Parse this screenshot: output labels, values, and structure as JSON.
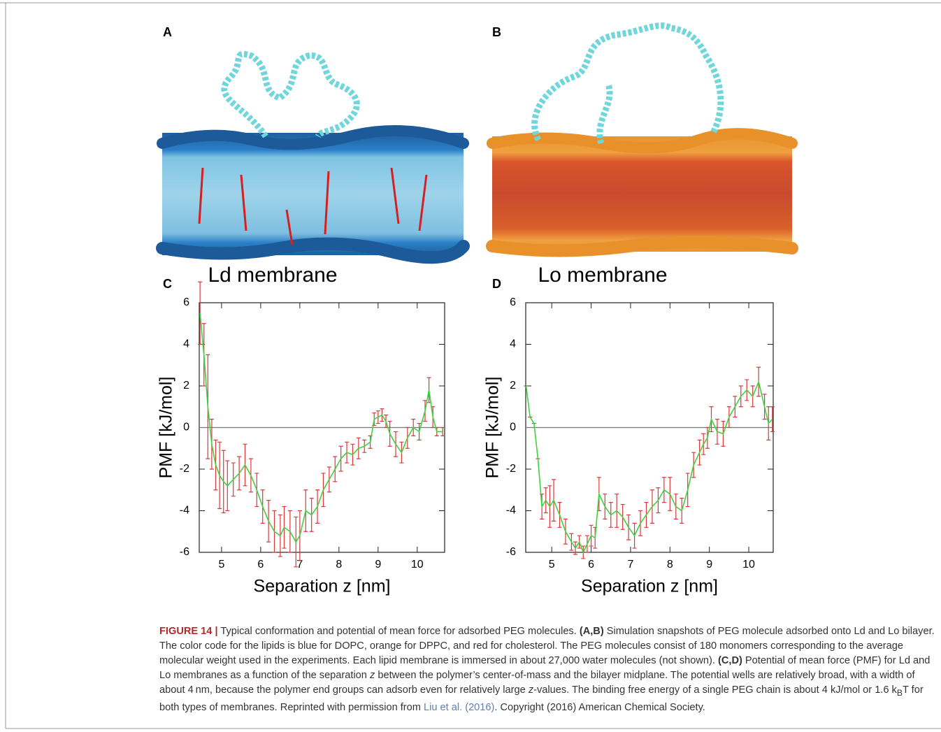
{
  "panel_labels": [
    "A",
    "B",
    "C",
    "D"
  ],
  "images": [
    {
      "caption": "Ld membrane"
    },
    {
      "caption": "Lo membrane"
    }
  ],
  "chart_data": [
    {
      "type": "line",
      "xlabel": "Separation z [nm]",
      "ylabel": "PMF [kJ/mol]",
      "xlim": [
        4.43,
        10.7
      ],
      "ylim": [
        -6,
        6
      ],
      "xticks": [
        5,
        6,
        7,
        8,
        9,
        10
      ],
      "yticks": [
        -6,
        -4,
        -2,
        0,
        2,
        4,
        6
      ],
      "hline": 0,
      "line_color": "#3fd13f",
      "error_color": "#d83a3a",
      "x": [
        4.45,
        4.55,
        4.65,
        4.75,
        4.85,
        4.95,
        5.05,
        5.15,
        5.3,
        5.45,
        5.6,
        5.75,
        5.9,
        6.05,
        6.2,
        6.35,
        6.5,
        6.6,
        6.75,
        6.9,
        7.0,
        7.15,
        7.3,
        7.45,
        7.6,
        7.75,
        7.9,
        8.05,
        8.2,
        8.35,
        8.5,
        8.65,
        8.8,
        8.9,
        9.0,
        9.1,
        9.2,
        9.3,
        9.45,
        9.6,
        9.75,
        9.9,
        10.05,
        10.2,
        10.3,
        10.4,
        10.5,
        10.65
      ],
      "values": [
        5.5,
        3.5,
        1.0,
        -0.8,
        -1.8,
        -2.3,
        -2.6,
        -2.8,
        -2.5,
        -2.2,
        -1.8,
        -2.3,
        -3.0,
        -3.8,
        -4.5,
        -5.0,
        -5.2,
        -4.8,
        -5.0,
        -5.5,
        -5.2,
        -4.0,
        -4.2,
        -3.8,
        -3.0,
        -2.5,
        -2.0,
        -1.5,
        -1.2,
        -1.3,
        -1.0,
        -0.9,
        -0.7,
        0.4,
        0.5,
        0.6,
        0.3,
        -0.3,
        -0.8,
        -1.2,
        -0.5,
        0.0,
        -0.2,
        0.8,
        1.8,
        0.5,
        -0.2,
        -0.2
      ],
      "errors": [
        1.5,
        1.5,
        2.5,
        1.2,
        1.2,
        1.6,
        1.5,
        1.2,
        0.8,
        0.8,
        1.0,
        0.8,
        0.8,
        0.8,
        1.0,
        1.0,
        1.0,
        1.0,
        1.0,
        1.2,
        1.2,
        1.0,
        0.8,
        0.8,
        0.8,
        0.6,
        0.6,
        0.6,
        0.5,
        0.5,
        0.5,
        0.3,
        0.3,
        0.3,
        0.3,
        0.3,
        0.3,
        0.6,
        0.6,
        0.5,
        0.5,
        0.4,
        0.4,
        0.5,
        0.6,
        0.5,
        0.2,
        0.2
      ]
    },
    {
      "type": "line",
      "xlabel": "Separation z [nm]",
      "ylabel": "PMF [kJ/mol]",
      "xlim": [
        4.34,
        10.62
      ],
      "ylim": [
        -6,
        6
      ],
      "xticks": [
        5,
        6,
        7,
        8,
        9,
        10
      ],
      "yticks": [
        -6,
        -4,
        -2,
        0,
        2,
        4,
        6
      ],
      "hline": 0,
      "line_color": "#3fd13f",
      "error_color": "#d83a3a",
      "x": [
        4.35,
        4.45,
        4.55,
        4.65,
        4.75,
        4.85,
        4.95,
        5.05,
        5.2,
        5.35,
        5.5,
        5.6,
        5.7,
        5.8,
        5.9,
        6.0,
        6.1,
        6.2,
        6.35,
        6.5,
        6.65,
        6.8,
        6.95,
        7.1,
        7.25,
        7.4,
        7.55,
        7.7,
        7.85,
        8.0,
        8.15,
        8.3,
        8.45,
        8.6,
        8.75,
        8.85,
        8.95,
        9.05,
        9.2,
        9.35,
        9.5,
        9.65,
        9.8,
        9.95,
        10.1,
        10.25,
        10.4,
        10.5,
        10.6
      ],
      "values": [
        2.0,
        0.5,
        0.2,
        -1.5,
        -3.8,
        -3.5,
        -3.8,
        -3.5,
        -4.2,
        -5.0,
        -5.5,
        -5.8,
        -5.5,
        -6.0,
        -5.6,
        -5.2,
        -5.3,
        -3.2,
        -3.8,
        -4.2,
        -4.0,
        -4.3,
        -4.8,
        -5.2,
        -4.6,
        -4.2,
        -3.8,
        -3.5,
        -3.0,
        -3.2,
        -3.8,
        -4.0,
        -3.0,
        -1.8,
        -1.2,
        -0.8,
        -0.5,
        0.4,
        -0.2,
        -0.3,
        0.5,
        1.0,
        1.5,
        1.8,
        1.5,
        2.2,
        1.0,
        0.2,
        0.4
      ],
      "errors": [
        0,
        0,
        0,
        0,
        0.6,
        0.6,
        1.0,
        1.0,
        0.6,
        0.6,
        0.4,
        0.3,
        0.3,
        0.3,
        0.4,
        0.5,
        0.5,
        0.8,
        0.6,
        0.6,
        0.8,
        0.6,
        0.6,
        0.6,
        0.6,
        0.6,
        0.8,
        0.6,
        0.6,
        0.8,
        0.6,
        0.6,
        0.8,
        0.6,
        0.6,
        0.5,
        0.5,
        0.6,
        0.6,
        0.6,
        0.5,
        0.5,
        0.5,
        0.5,
        0.5,
        0.7,
        0.6,
        0.8,
        0.6
      ]
    }
  ],
  "caption": [
    "FIGURE 14 |",
    " Typical conformation and potential of mean force for adsorbed PEG molecules. ",
    "(A,B)",
    " Simulation snapshots of PEG molecule adsorbed onto Ld and Lo bilayer. The color code for the lipids is blue for DOPC, orange for DPPC, and red for cholesterol. The PEG molecules consist of 180 monomers corresponding to the average molecular weight used in the experiments. Each lipid membrane is immersed in about 27,000 water molecules (not shown). ",
    "(C,D)",
    " Potential of mean force (PMF) for Ld and Lo membranes as a function of the separation ",
    "z",
    " between the polymer’s center-of-mass and the bilayer midplane. The potential wells are relatively broad, with a width of about 4 nm, because the polymer end groups can adsorb even for relatively large ",
    "z",
    "-values. The binding free energy of a single PEG chain is about 4 kJ/mol or 1.6 k",
    "B",
    "T for both types of membranes. Reprinted with permission from ",
    "Liu et al. (2016)",
    ". Copyright (2016) American Chemical Society."
  ]
}
